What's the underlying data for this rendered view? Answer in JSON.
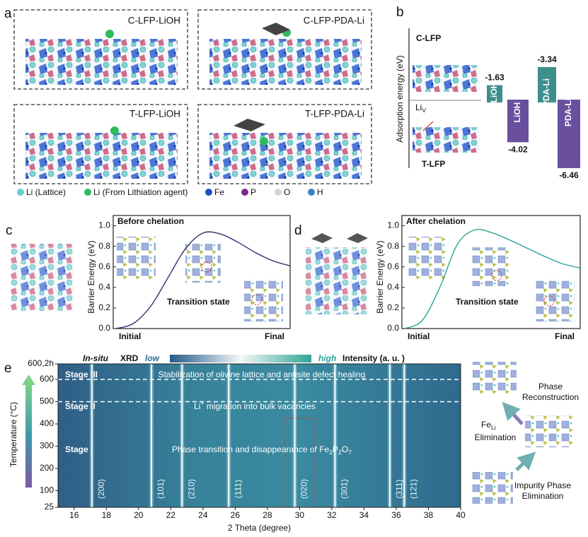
{
  "panels": {
    "a": {
      "label": "a",
      "structures": [
        "C-LFP-LiOH",
        "C-LFP-PDA-Li",
        "T-LFP-LiOH",
        "T-LFP-PDA-Li"
      ],
      "legend": [
        {
          "name": "Li (Lattice)",
          "color": "#6ccccc"
        },
        {
          "name": "Li (From Lithiation agent)",
          "color": "#2dbb5c"
        },
        {
          "name": "Fe",
          "color": "#1f4fc4"
        },
        {
          "name": "P",
          "color": "#7a2a92"
        },
        {
          "name": "O",
          "color": "#d4d4d4"
        },
        {
          "name": "H",
          "color": "#3b82c4"
        }
      ]
    },
    "b": {
      "label": "b",
      "ylabel": "Adsorption energy (eV)",
      "top_label": "C-LFP",
      "bottom_label": "T-LFP",
      "vacancy": [
        "Li",
        "V"
      ],
      "bars": [
        {
          "name": "LiOH",
          "value": -1.63,
          "color": "#3d8f8c",
          "side": "top"
        },
        {
          "name": "LiOH",
          "value": -4.02,
          "color": "#6a4f9f",
          "side": "bottom"
        },
        {
          "name": "PDA-Li",
          "value": -3.34,
          "color": "#3d8f8c",
          "side": "top"
        },
        {
          "name": "PDA-Li",
          "value": -6.46,
          "color": "#6a4f9f",
          "side": "bottom"
        }
      ]
    },
    "c": {
      "type": "line",
      "label": "c",
      "title": "Before chelation",
      "annotation": "Transition state",
      "ylabel": "Barrier Energy (eV)",
      "xlabels": [
        "Initial",
        "Final"
      ],
      "color": "#2e2f6e",
      "values": [
        0,
        0.05,
        0.22,
        0.5,
        0.78,
        0.93,
        0.92,
        0.84,
        0.74,
        0.66,
        0.61
      ],
      "ylim": [
        0,
        1.1
      ],
      "yticks": [
        {
          "value": 0,
          "label": "0.0"
        },
        0.2,
        0.4,
        0.6,
        0.8,
        {
          "value": 1,
          "label": "1.0"
        }
      ]
    },
    "d": {
      "type": "line",
      "label": "d",
      "title": "After chelation",
      "annotation": "Transition state",
      "ylabel": "Barrier Energy (eV)",
      "xlabels": [
        "Initial",
        "Final"
      ],
      "color": "#2aa59a",
      "values": [
        0,
        0.08,
        0.4,
        0.82,
        0.96,
        0.93,
        0.86,
        0.78,
        0.7,
        0.63,
        0.59
      ],
      "ylim": [
        0,
        1.1
      ],
      "yticks": [
        {
          "value": 0,
          "label": "0.0"
        },
        0.2,
        0.4,
        0.6,
        0.8,
        {
          "value": 1,
          "label": "1.0"
        }
      ]
    },
    "e": {
      "type": "heatmap",
      "label": "e",
      "header": {
        "method": "In-situ",
        "method_rest": " XRD",
        "low": "low",
        "high": "high",
        "intensity": "Intensity (a. u. )"
      },
      "xlabel": "2 Theta (degree)",
      "ylabel": "Temperature (°C)",
      "xlim": [
        15,
        40
      ],
      "xticks": [
        16,
        18,
        20,
        22,
        24,
        26,
        28,
        30,
        32,
        34,
        36,
        38,
        40
      ],
      "ylim": [
        25,
        670
      ],
      "yticks": [
        25,
        100,
        200,
        300,
        400,
        500,
        600,
        {
          "value": 670,
          "label": "600,2h"
        }
      ],
      "stage_boundaries": [
        500,
        600
      ],
      "stages": [
        "Stage III",
        "Stage II",
        "Stage I"
      ],
      "notes": [
        [
          "Stabilization of olivine lattice and antisite defect healing"
        ],
        [
          "Li",
          "+",
          " migration into bulk vacancies"
        ],
        [
          "Phase transition and disappearance of Fe",
          "2",
          "P",
          "2",
          "O",
          "7"
        ]
      ],
      "peaks": [
        {
          "hkl": "(200)",
          "position": 17.1
        },
        {
          "hkl": "(101)",
          "position": 20.8
        },
        {
          "hkl": "(210)",
          "position": 22.7
        },
        {
          "hkl": "(111)",
          "position": 25.6
        },
        {
          "hkl": "(020)",
          "position": 29.7
        },
        {
          "hkl": "(301)",
          "position": 32.2
        },
        {
          "hkl": "(311)",
          "position": 35.6
        },
        {
          "hkl": "(121)",
          "position": 36.5
        }
      ],
      "highlight": [
        29.1,
        30.9
      ],
      "schematic": {
        "top": [
          "Phase",
          "Reconstruction"
        ],
        "middle": [
          "Fe",
          "Li"
        ],
        "middle_rest": "Elimination",
        "bottom": [
          "Impurity Phase",
          "Elimination"
        ]
      }
    }
  }
}
